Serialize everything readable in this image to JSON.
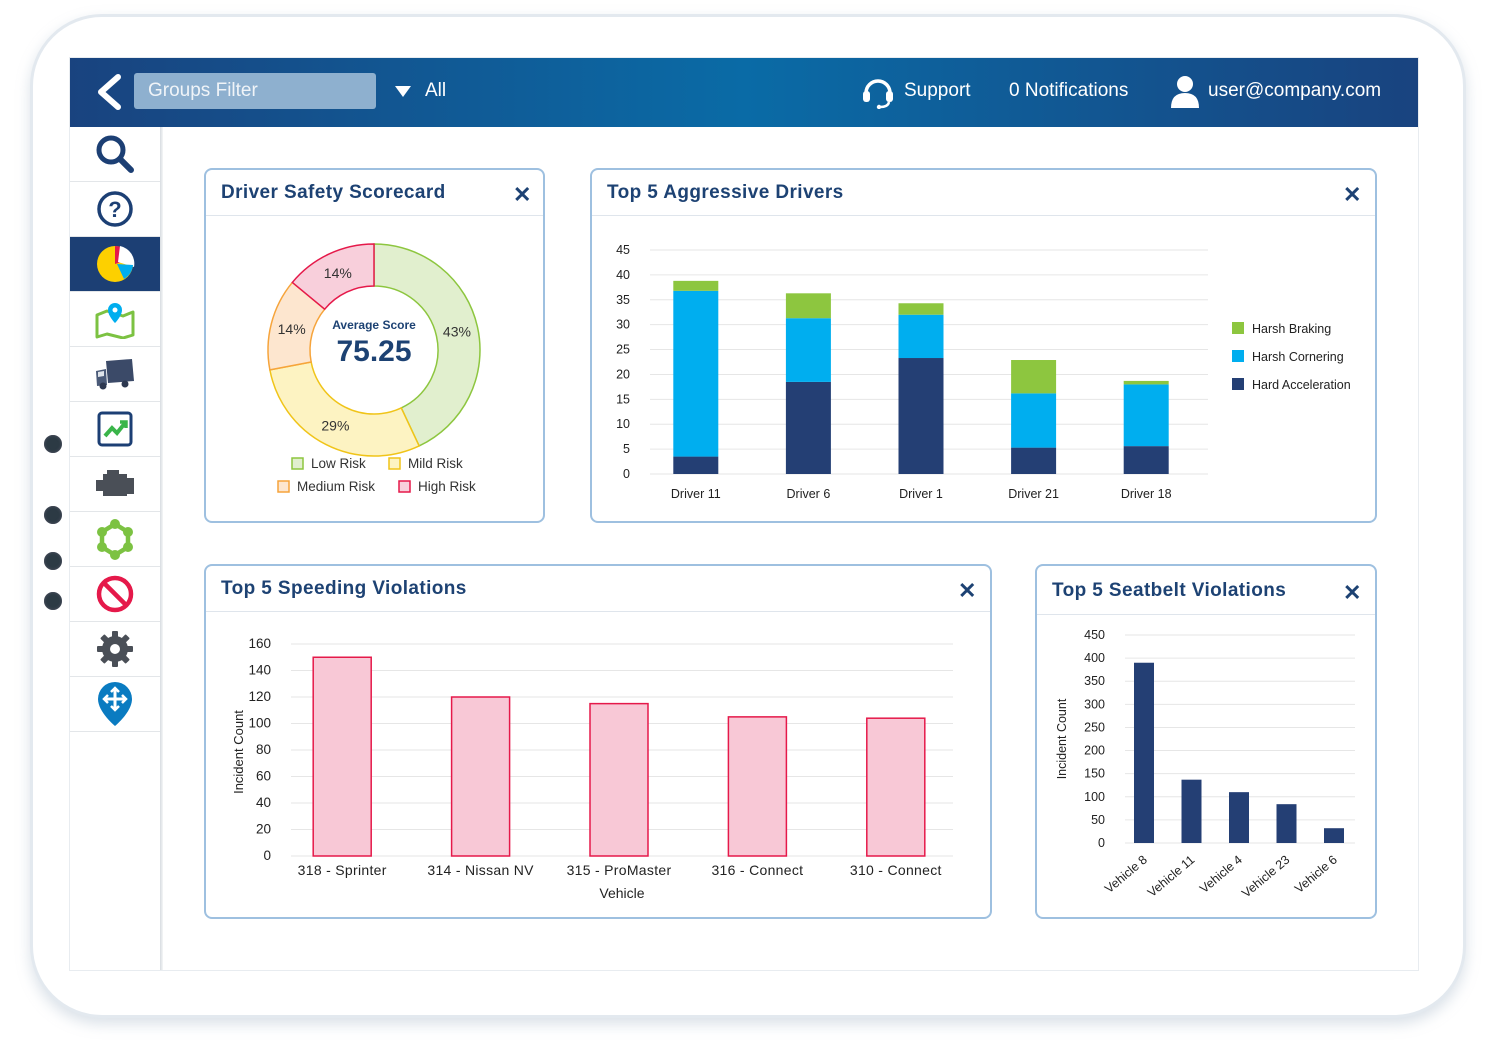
{
  "topbar": {
    "groups_filter_placeholder": "Groups Filter",
    "filter_value": "All",
    "support_label": "Support",
    "notifications_label": "0 Notifications",
    "user_email": "user@company.com"
  },
  "sidebar": {
    "items": [
      "search-icon",
      "help-icon",
      "dashboard-pie-icon",
      "map-pin-icon",
      "truck-icon",
      "trend-chart-icon",
      "engine-icon",
      "geofence-icon",
      "no-entry-icon",
      "gear-icon",
      "navigation-pin-icon"
    ],
    "active_index": 2
  },
  "colors": {
    "brand_dark": "#1d4273",
    "low_risk": "#e1efce",
    "mild_risk": "#fdf3c2",
    "medium_risk": "#fde6cf",
    "high_risk": "#f8cfdb",
    "harsh_braking": "#8dc63f",
    "harsh_cornering": "#00aeef",
    "hard_acceleration": "#243f74",
    "speeding_bar": "#f8c8d6",
    "seatbelt_bar": "#243f74"
  },
  "scorecard": {
    "title": "Driver Safety Scorecard",
    "close": "✕",
    "center_label": "Average Score",
    "center_value": "75.25",
    "chart_data": {
      "type": "pie",
      "title": "Driver Safety Scorecard",
      "labels": [
        "Low Risk",
        "Mild Risk",
        "Medium Risk",
        "High Risk"
      ],
      "values": [
        43,
        29,
        14,
        14
      ],
      "value_labels": [
        "43%",
        "29%",
        "14%",
        "14%"
      ]
    }
  },
  "aggressive": {
    "title": "Top 5 Aggressive Drivers",
    "close": "✕",
    "chart_data": {
      "type": "bar",
      "stacked": true,
      "title": "Top 5 Aggressive Drivers",
      "categories": [
        "Driver 11",
        "Driver 6",
        "Driver 1",
        "Driver 21",
        "Driver 18"
      ],
      "series": [
        {
          "name": "Hard Acceleration",
          "values": [
            3.5,
            18.5,
            23.3,
            5.3,
            5.6
          ]
        },
        {
          "name": "Harsh Cornering",
          "values": [
            33.3,
            12.8,
            8.7,
            10.9,
            12.4
          ]
        },
        {
          "name": "Harsh Braking",
          "values": [
            2.0,
            5.0,
            2.3,
            6.7,
            0.7
          ]
        }
      ],
      "legend_order": [
        "Harsh Braking",
        "Harsh Cornering",
        "Hard Acceleration"
      ],
      "yticks": [
        "0",
        "5",
        "10",
        "15",
        "20",
        "25",
        "30",
        "35",
        "40",
        "45"
      ],
      "ylim": [
        0,
        45
      ],
      "legend_position": "right"
    }
  },
  "speeding": {
    "title": "Top 5 Speeding Violations",
    "close": "✕",
    "chart_data": {
      "type": "bar",
      "title": "Top 5 Speeding Violations",
      "categories": [
        "318 - Sprinter",
        "314 - Nissan NV",
        "315 - ProMaster",
        "316 - Connect",
        "310 - Connect"
      ],
      "values": [
        150,
        120,
        115,
        105,
        104
      ],
      "xlabel": "Vehicle",
      "ylabel": "Incident Count",
      "yticks": [
        "0",
        "20",
        "40",
        "60",
        "80",
        "100",
        "120",
        "140",
        "160"
      ],
      "ylim": [
        0,
        160
      ]
    }
  },
  "seatbelt": {
    "title": "Top 5 Seatbelt Violations",
    "close": "✕",
    "chart_data": {
      "type": "bar",
      "title": "Top 5 Seatbelt Violations",
      "categories": [
        "Vehicle 8",
        "Vehicle 11",
        "Vehicle 4",
        "Vehicle 23",
        "Vehicle 6"
      ],
      "values": [
        390,
        137,
        110,
        84,
        32
      ],
      "ylabel": "Incident Count",
      "yticks": [
        "0",
        "50",
        "100",
        "150",
        "200",
        "250",
        "300",
        "350",
        "400",
        "450"
      ],
      "ylim": [
        0,
        450
      ]
    }
  }
}
